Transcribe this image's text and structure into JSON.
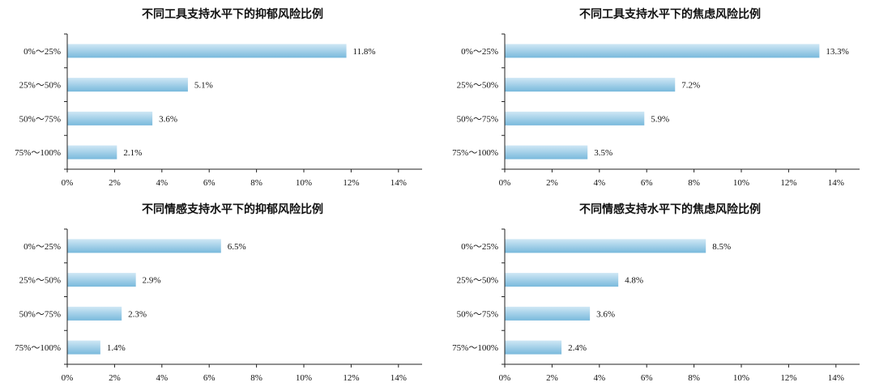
{
  "colors": {
    "bar_light": "#cfe7f5",
    "bar_dark": "#79b9dc",
    "axis": "#222222"
  },
  "chart_data": [
    {
      "type": "bar",
      "orientation": "horizontal",
      "title": "不同工具支持水平下的抑郁风险比例",
      "categories": [
        "0%～25%",
        "25%～50%",
        "50%～75%",
        "75%～100%"
      ],
      "values": [
        11.8,
        5.1,
        3.6,
        2.1
      ],
      "value_labels": [
        "11.8%",
        "5.1%",
        "3.6%",
        "2.1%"
      ],
      "xlim": [
        0,
        15
      ],
      "x_ticks": [
        "0%",
        "2%",
        "4%",
        "6%",
        "8%",
        "10%",
        "12%",
        "14%"
      ],
      "x_tick_values": [
        0,
        2,
        4,
        6,
        8,
        10,
        12,
        14
      ],
      "grid": false
    },
    {
      "type": "bar",
      "orientation": "horizontal",
      "title": "不同工具支持水平下的焦虑风险比例",
      "categories": [
        "0%～25%",
        "25%～50%",
        "50%～75%",
        "75%～100%"
      ],
      "values": [
        13.3,
        7.2,
        5.9,
        3.5
      ],
      "value_labels": [
        "13.3%",
        "7.2%",
        "5.9%",
        "3.5%"
      ],
      "xlim": [
        0,
        15
      ],
      "x_ticks": [
        "0%",
        "2%",
        "4%",
        "6%",
        "8%",
        "10%",
        "12%",
        "14%"
      ],
      "x_tick_values": [
        0,
        2,
        4,
        6,
        8,
        10,
        12,
        14
      ],
      "grid": false
    },
    {
      "type": "bar",
      "orientation": "horizontal",
      "title": "不同情感支持水平下的抑郁风险比例",
      "categories": [
        "0%～25%",
        "25%～50%",
        "50%～75%",
        "75%～100%"
      ],
      "values": [
        6.5,
        2.9,
        2.3,
        1.4
      ],
      "value_labels": [
        "6.5%",
        "2.9%",
        "2.3%",
        "1.4%"
      ],
      "xlim": [
        0,
        15
      ],
      "x_ticks": [
        "0%",
        "2%",
        "4%",
        "6%",
        "8%",
        "10%",
        "12%",
        "14%"
      ],
      "x_tick_values": [
        0,
        2,
        4,
        6,
        8,
        10,
        12,
        14
      ],
      "grid": false
    },
    {
      "type": "bar",
      "orientation": "horizontal",
      "title": "不同情感支持水平下的焦虑风险比例",
      "categories": [
        "0%～25%",
        "25%～50%",
        "50%～75%",
        "75%～100%"
      ],
      "values": [
        8.5,
        4.8,
        3.6,
        2.4
      ],
      "value_labels": [
        "8.5%",
        "4.8%",
        "3.6%",
        "2.4%"
      ],
      "xlim": [
        0,
        15
      ],
      "x_ticks": [
        "0%",
        "2%",
        "4%",
        "6%",
        "8%",
        "10%",
        "12%",
        "14%"
      ],
      "x_tick_values": [
        0,
        2,
        4,
        6,
        8,
        10,
        12,
        14
      ],
      "grid": false
    }
  ]
}
